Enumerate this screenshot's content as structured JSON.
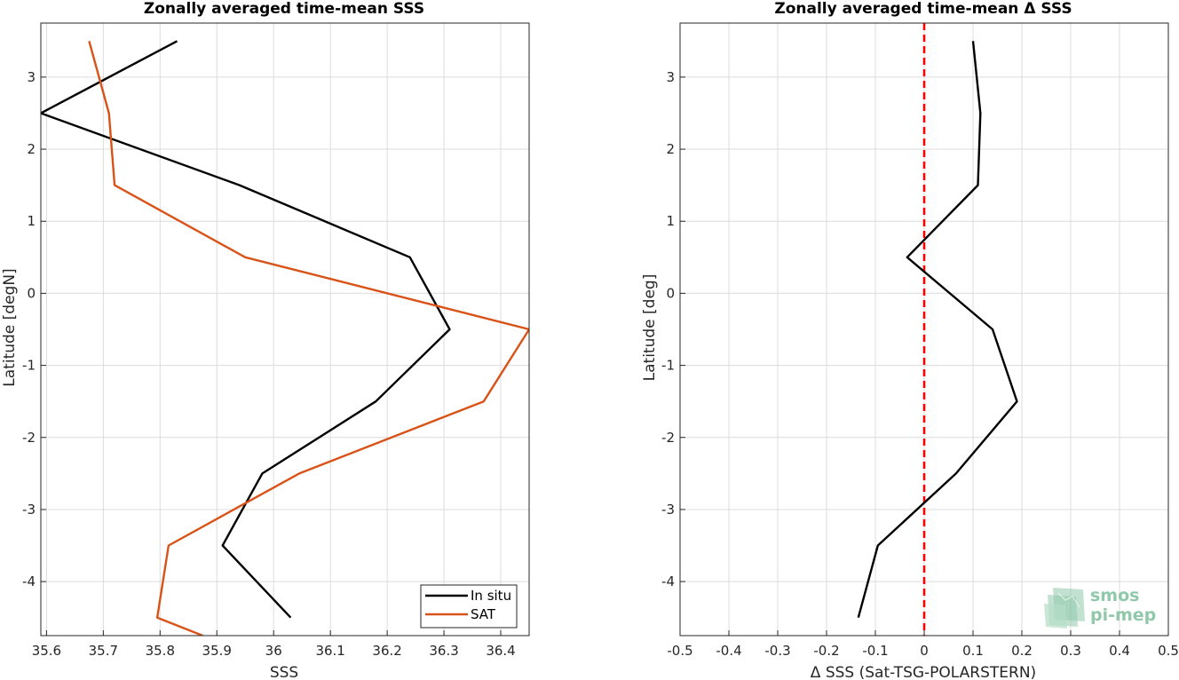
{
  "chart_data": [
    {
      "type": "line",
      "title": "Zonally averaged time-mean SSS",
      "xlabel": "SSS",
      "ylabel": "Latitude [degN]",
      "xlim": [
        35.59,
        36.45
      ],
      "ylim": [
        -4.75,
        3.75
      ],
      "xticks": [
        35.6,
        35.7,
        35.8,
        35.9,
        36.0,
        36.1,
        36.2,
        36.3,
        36.4
      ],
      "xtick_labels": [
        "35.6",
        "35.7",
        "35.8",
        "35.9",
        "36",
        "36.1",
        "36.2",
        "36.3",
        "36.4"
      ],
      "yticks": [
        3,
        2,
        1,
        0,
        -1,
        -2,
        -3,
        -4
      ],
      "ytick_labels": [
        "3",
        "2",
        "1",
        "0",
        "-1",
        "-2",
        "-3",
        "-4"
      ],
      "grid": true,
      "legend": {
        "position": "bottom-right",
        "entries": [
          "In situ",
          "SAT"
        ]
      },
      "series": [
        {
          "name": "In situ",
          "color": "#000000",
          "points": [
            [
              35.83,
              3.5
            ],
            [
              35.59,
              2.5
            ],
            [
              35.94,
              1.5
            ],
            [
              36.24,
              0.5
            ],
            [
              36.31,
              -0.5
            ],
            [
              36.18,
              -1.5
            ],
            [
              35.98,
              -2.5
            ],
            [
              35.91,
              -3.5
            ],
            [
              36.03,
              -4.5
            ]
          ]
        },
        {
          "name": "SAT",
          "color": "#d95319",
          "points": [
            [
              35.675,
              3.5
            ],
            [
              35.71,
              2.5
            ],
            [
              35.72,
              1.5
            ],
            [
              35.95,
              0.5
            ],
            [
              36.45,
              -0.5
            ],
            [
              36.37,
              -1.5
            ],
            [
              36.045,
              -2.5
            ],
            [
              35.815,
              -3.5
            ],
            [
              35.795,
              -4.5
            ],
            [
              35.875,
              -4.75
            ]
          ]
        }
      ]
    },
    {
      "type": "line",
      "title": "Zonally averaged time-mean Δ SSS",
      "xlabel": "Δ SSS (Sat-TSG-POLARSTERN)",
      "ylabel": "Latitude [deg]",
      "xlim": [
        -0.5,
        0.5
      ],
      "ylim": [
        -4.75,
        3.75
      ],
      "xticks": [
        -0.5,
        -0.4,
        -0.3,
        -0.2,
        -0.1,
        0,
        0.1,
        0.2,
        0.3,
        0.4,
        0.5
      ],
      "xtick_labels": [
        "-0.5",
        "-0.4",
        "-0.3",
        "-0.2",
        "-0.1",
        "0",
        "0.1",
        "0.2",
        "0.3",
        "0.4",
        "0.5"
      ],
      "yticks": [
        3,
        2,
        1,
        0,
        -1,
        -2,
        -3,
        -4
      ],
      "ytick_labels": [
        "3",
        "2",
        "1",
        "0",
        "-1",
        "-2",
        "-3",
        "-4"
      ],
      "grid": true,
      "reference_line": {
        "x": 0,
        "color": "#ff0000",
        "style": "dashed"
      },
      "series": [
        {
          "color": "#000000",
          "points": [
            [
              0.1,
              3.5
            ],
            [
              0.115,
              2.5
            ],
            [
              0.11,
              1.5
            ],
            [
              -0.035,
              0.5
            ],
            [
              0.14,
              -0.5
            ],
            [
              0.19,
              -1.5
            ],
            [
              0.065,
              -2.5
            ],
            [
              -0.095,
              -3.5
            ],
            [
              -0.135,
              -4.5
            ]
          ]
        }
      ]
    }
  ],
  "logo": {
    "line1": "smos",
    "line2": "pi-mep",
    "color": "#7dbf9c"
  }
}
